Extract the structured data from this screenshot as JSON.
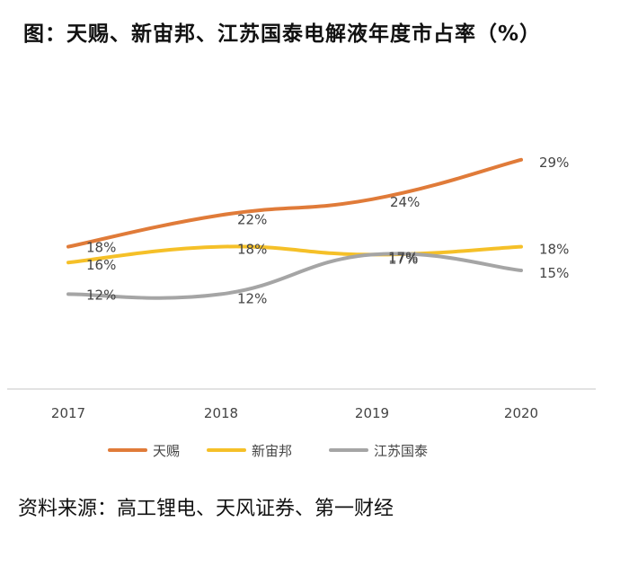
{
  "chart_data": {
    "type": "line",
    "title": "图：天赐、新宙邦、江苏国泰电解液年度市占率（%）",
    "categories": [
      "2017",
      "2018",
      "2019",
      "2020"
    ],
    "series": [
      {
        "name": "天赐",
        "color": "#e07b39",
        "values": [
          18,
          22,
          24,
          29
        ],
        "labels": [
          "18%",
          "22%",
          "24%",
          "29%"
        ]
      },
      {
        "name": "新宙邦",
        "color": "#f5c028",
        "values": [
          16,
          18,
          17,
          18
        ],
        "labels": [
          "16%",
          "18%",
          "17%",
          "18%"
        ]
      },
      {
        "name": "江苏国泰",
        "color": "#a5a5a5",
        "values": [
          12,
          12,
          17,
          15
        ],
        "labels": [
          "12%",
          "12%",
          "17%",
          "15%"
        ]
      }
    ],
    "xlabel": "",
    "ylabel": "",
    "ylim": [
      0,
      35
    ],
    "grid": false,
    "legend_position": "bottom"
  },
  "source": "资料来源：高工锂电、天风证券、第一财经"
}
